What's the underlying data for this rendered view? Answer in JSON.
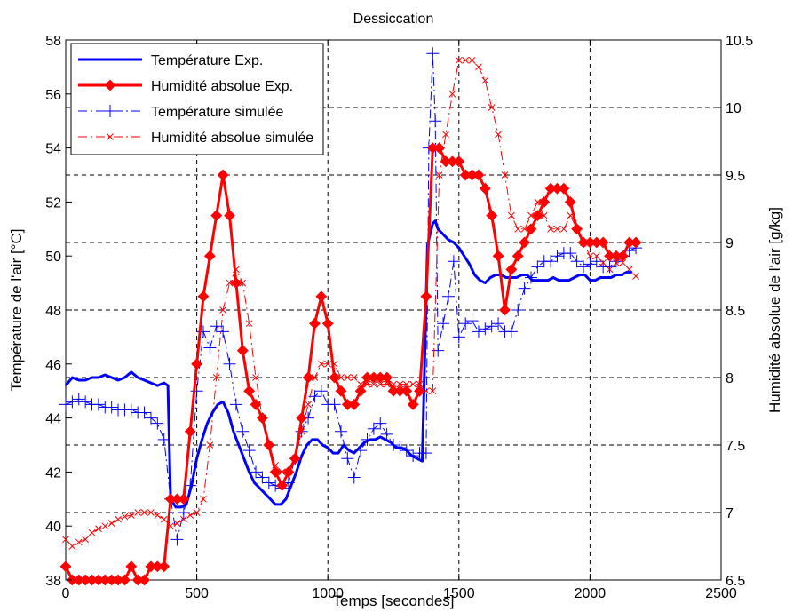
{
  "chart_data": {
    "type": "line",
    "title": "Dessiccation",
    "xlabel": "Temps [secondes]",
    "ylabel_left": "Température de l'air [°C]",
    "ylabel_right": "Humidité absolue de l'air [g/kg]",
    "xlim": [
      0,
      2500
    ],
    "ylim_left": [
      38,
      58
    ],
    "ylim_right": [
      6.5,
      10.5
    ],
    "xticks": [
      "0",
      "500",
      "1000",
      "1500",
      "2000",
      "2500"
    ],
    "yticks_left": [
      "38",
      "40",
      "42",
      "44",
      "46",
      "48",
      "50",
      "52",
      "54",
      "56",
      "58"
    ],
    "yticks_right": [
      "6.5",
      "7",
      "7.5",
      "8",
      "8.5",
      "9",
      "9.5",
      "10",
      "10.5"
    ],
    "grid": true,
    "legend_position": "top-left",
    "series": [
      {
        "name": "Température Exp.",
        "axis": "left",
        "color": "#0000ff",
        "style": "solid-thick",
        "x": [
          0,
          25,
          50,
          75,
          100,
          125,
          150,
          175,
          200,
          225,
          250,
          275,
          300,
          325,
          350,
          375,
          390,
          400,
          420,
          440,
          460,
          480,
          500,
          520,
          540,
          560,
          580,
          600,
          620,
          640,
          660,
          680,
          700,
          720,
          740,
          760,
          780,
          800,
          820,
          840,
          860,
          880,
          900,
          920,
          940,
          960,
          980,
          1000,
          1020,
          1040,
          1060,
          1080,
          1100,
          1120,
          1140,
          1160,
          1180,
          1200,
          1220,
          1240,
          1260,
          1280,
          1300,
          1320,
          1340,
          1360,
          1380,
          1390,
          1400,
          1410,
          1420,
          1440,
          1460,
          1480,
          1500,
          1520,
          1540,
          1560,
          1580,
          1600,
          1620,
          1640,
          1660,
          1680,
          1700,
          1720,
          1740,
          1760,
          1780,
          1800,
          1820,
          1840,
          1860,
          1880,
          1900,
          1920,
          1940,
          1960,
          1980,
          2000,
          2020,
          2040,
          2060,
          2080,
          2100,
          2120,
          2140,
          2160
        ],
        "y": [
          45.2,
          45.5,
          45.4,
          45.4,
          45.5,
          45.5,
          45.6,
          45.5,
          45.4,
          45.5,
          45.7,
          45.5,
          45.4,
          45.3,
          45.2,
          45.3,
          45.2,
          41.0,
          40.7,
          40.7,
          40.8,
          41.5,
          42.5,
          43.2,
          43.8,
          44.2,
          44.5,
          44.6,
          44.2,
          43.5,
          43.0,
          42.5,
          42.0,
          41.6,
          41.4,
          41.2,
          41.0,
          40.8,
          40.8,
          41.0,
          41.5,
          42.0,
          42.6,
          43.0,
          43.2,
          43.2,
          43.0,
          42.9,
          42.7,
          42.7,
          43.0,
          42.8,
          42.7,
          42.9,
          43.1,
          43.2,
          43.2,
          43.3,
          43.2,
          43.1,
          42.9,
          42.9,
          42.8,
          42.6,
          42.5,
          42.4,
          50.4,
          50.8,
          51.2,
          51.3,
          51.0,
          50.8,
          50.6,
          50.5,
          50.3,
          50.0,
          49.7,
          49.3,
          49.1,
          49.0,
          49.2,
          49.3,
          49.3,
          49.2,
          49.2,
          49.2,
          49.3,
          49.3,
          49.1,
          49.1,
          49.1,
          49.1,
          49.2,
          49.1,
          49.1,
          49.1,
          49.2,
          49.3,
          49.3,
          49.1,
          49.1,
          49.2,
          49.2,
          49.2,
          49.3,
          49.3,
          49.4,
          49.4
        ]
      },
      {
        "name": "Humidité absolue Exp.",
        "axis": "right",
        "color": "#ff0000",
        "style": "solid-thick-diamond",
        "x": [
          0,
          25,
          50,
          75,
          100,
          125,
          150,
          175,
          200,
          225,
          250,
          275,
          300,
          325,
          350,
          375,
          400,
          425,
          450,
          475,
          500,
          525,
          550,
          575,
          600,
          625,
          650,
          675,
          700,
          725,
          750,
          775,
          800,
          825,
          850,
          875,
          900,
          925,
          950,
          975,
          1000,
          1025,
          1050,
          1075,
          1100,
          1125,
          1150,
          1175,
          1200,
          1225,
          1250,
          1275,
          1300,
          1325,
          1350,
          1375,
          1400,
          1425,
          1450,
          1475,
          1500,
          1525,
          1550,
          1575,
          1600,
          1625,
          1650,
          1675,
          1700,
          1725,
          1750,
          1775,
          1800,
          1825,
          1850,
          1875,
          1900,
          1925,
          1950,
          1975,
          2000,
          2025,
          2050,
          2075,
          2100,
          2125,
          2150,
          2175
        ],
        "y": [
          6.6,
          6.5,
          6.5,
          6.5,
          6.5,
          6.5,
          6.5,
          6.5,
          6.5,
          6.5,
          6.6,
          6.5,
          6.5,
          6.6,
          6.6,
          6.6,
          7.1,
          7.1,
          7.1,
          7.6,
          8.1,
          8.6,
          8.9,
          9.2,
          9.5,
          9.2,
          8.7,
          8.2,
          7.9,
          7.8,
          7.7,
          7.5,
          7.3,
          7.2,
          7.3,
          7.4,
          7.7,
          8.0,
          8.4,
          8.6,
          8.4,
          8.0,
          7.9,
          7.8,
          7.8,
          7.9,
          8.0,
          8.0,
          8.0,
          8.0,
          7.9,
          7.9,
          7.9,
          7.8,
          7.9,
          8.6,
          9.7,
          9.7,
          9.6,
          9.6,
          9.6,
          9.5,
          9.5,
          9.5,
          9.4,
          9.2,
          8.9,
          8.5,
          8.8,
          8.9,
          9.0,
          9.1,
          9.2,
          9.3,
          9.4,
          9.4,
          9.4,
          9.3,
          9.1,
          9.0,
          9.0,
          9.0,
          9.0,
          8.9,
          8.9,
          8.9,
          9.0,
          9.0
        ]
      },
      {
        "name": "Température simulée",
        "axis": "left",
        "color": "#0000ff",
        "style": "dashdot-thin-plus",
        "x": [
          0,
          25,
          50,
          75,
          100,
          125,
          150,
          175,
          200,
          225,
          250,
          275,
          300,
          325,
          350,
          375,
          400,
          425,
          450,
          475,
          500,
          525,
          550,
          575,
          600,
          625,
          650,
          675,
          700,
          725,
          750,
          775,
          800,
          825,
          850,
          875,
          900,
          925,
          950,
          975,
          1000,
          1025,
          1050,
          1075,
          1100,
          1125,
          1150,
          1175,
          1200,
          1225,
          1250,
          1275,
          1300,
          1325,
          1350,
          1375,
          1385,
          1400,
          1410,
          1420,
          1440,
          1460,
          1480,
          1500,
          1525,
          1550,
          1575,
          1600,
          1625,
          1650,
          1675,
          1700,
          1725,
          1750,
          1775,
          1800,
          1825,
          1850,
          1875,
          1900,
          1925,
          1950,
          1975,
          2000,
          2025,
          2050,
          2075,
          2100,
          2125,
          2150,
          2175
        ],
        "y": [
          44.5,
          44.6,
          44.7,
          44.6,
          44.5,
          44.5,
          44.4,
          44.4,
          44.3,
          44.3,
          44.3,
          44.2,
          44.2,
          44.0,
          43.8,
          43.2,
          41.0,
          39.5,
          40.5,
          41.5,
          45.0,
          47.2,
          46.6,
          47.4,
          47.2,
          46.0,
          44.5,
          43.5,
          42.8,
          42.0,
          41.8,
          41.6,
          41.5,
          41.4,
          41.6,
          42.5,
          43.5,
          44.0,
          44.8,
          45.0,
          44.5,
          44.5,
          43.5,
          42.5,
          41.8,
          42.8,
          43.2,
          43.6,
          43.8,
          43.4,
          43.0,
          42.9,
          42.8,
          42.6,
          42.7,
          42.7,
          54.0,
          57.5,
          55.0,
          46.5,
          47.5,
          48.5,
          49.8,
          47.0,
          47.5,
          47.6,
          47.2,
          47.3,
          47.4,
          47.5,
          47.2,
          47.2,
          48.0,
          48.8,
          49.2,
          49.6,
          49.8,
          49.8,
          50.0,
          50.1,
          50.1,
          49.8,
          49.6,
          49.7,
          49.8,
          49.6,
          49.6,
          49.8,
          50.0,
          50.2,
          50.3
        ]
      },
      {
        "name": "Humidité absolue simulée",
        "axis": "right",
        "color": "#ff0000",
        "style": "dashdot-thin-x",
        "x": [
          0,
          25,
          50,
          75,
          100,
          125,
          150,
          175,
          200,
          225,
          250,
          275,
          300,
          325,
          350,
          375,
          400,
          425,
          450,
          475,
          500,
          525,
          550,
          575,
          600,
          625,
          650,
          675,
          700,
          725,
          750,
          775,
          800,
          825,
          850,
          875,
          900,
          925,
          950,
          975,
          1000,
          1025,
          1050,
          1075,
          1100,
          1125,
          1150,
          1175,
          1200,
          1225,
          1250,
          1275,
          1300,
          1325,
          1350,
          1375,
          1400,
          1425,
          1450,
          1475,
          1500,
          1525,
          1550,
          1575,
          1600,
          1625,
          1650,
          1675,
          1700,
          1725,
          1750,
          1775,
          1800,
          1825,
          1850,
          1875,
          1900,
          1925,
          1950,
          1975,
          2000,
          2025,
          2050,
          2075,
          2100,
          2125,
          2150,
          2175
        ],
        "y": [
          6.8,
          6.75,
          6.78,
          6.8,
          6.85,
          6.88,
          6.9,
          6.92,
          6.95,
          6.97,
          6.98,
          7.0,
          7.0,
          7.0,
          6.98,
          6.95,
          6.9,
          6.92,
          6.95,
          6.98,
          7.0,
          7.1,
          7.5,
          8.0,
          8.5,
          8.7,
          8.8,
          8.7,
          8.4,
          8.0,
          7.7,
          7.5,
          7.35,
          7.3,
          7.3,
          7.4,
          7.6,
          7.8,
          8.0,
          8.1,
          8.1,
          8.1,
          8.0,
          8.0,
          8.0,
          7.95,
          7.95,
          7.95,
          7.95,
          7.95,
          7.95,
          7.95,
          7.95,
          7.95,
          7.95,
          7.9,
          7.9,
          9.5,
          9.8,
          10.1,
          10.35,
          10.35,
          10.35,
          10.3,
          10.2,
          10.0,
          9.8,
          9.5,
          9.2,
          9.1,
          9.1,
          9.2,
          9.3,
          9.2,
          9.1,
          9.1,
          9.1,
          9.2,
          9.1,
          9.0,
          8.9,
          8.9,
          8.85,
          8.8,
          8.85,
          8.85,
          8.8,
          8.75
        ]
      }
    ]
  }
}
